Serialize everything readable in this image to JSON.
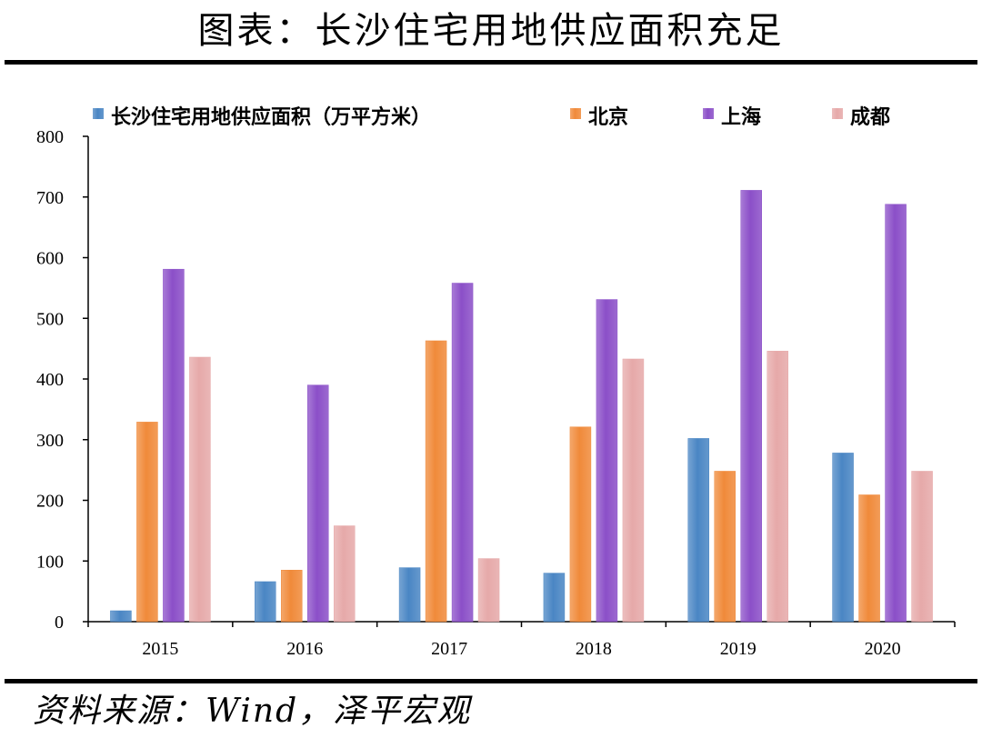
{
  "header": {
    "title": "图表：长沙住宅用地供应面积充足"
  },
  "footer": {
    "source": "资料来源：Wind，泽平宏观"
  },
  "chart_data": {
    "type": "bar",
    "categories": [
      "2015",
      "2016",
      "2017",
      "2018",
      "2019",
      "2020"
    ],
    "series": [
      {
        "name": "长沙住宅用地供应面积（万平方米）",
        "color": "#4a86c4",
        "values": [
          18,
          66,
          89,
          80,
          302,
          278
        ]
      },
      {
        "name": "北京",
        "color": "#f08a3a",
        "values": [
          329,
          85,
          463,
          321,
          248,
          209
        ]
      },
      {
        "name": "上海",
        "color": "#8b4fc8",
        "values": [
          581,
          390,
          558,
          531,
          711,
          688
        ]
      },
      {
        "name": "成都",
        "color": "#e6a9a9",
        "values": [
          436,
          158,
          104,
          433,
          446,
          248
        ]
      }
    ],
    "y_ticks": [
      "0",
      "100",
      "200",
      "300",
      "400",
      "500",
      "600",
      "700",
      "800"
    ],
    "ylim": [
      0,
      800
    ],
    "grid": false,
    "legend_position": "top"
  }
}
